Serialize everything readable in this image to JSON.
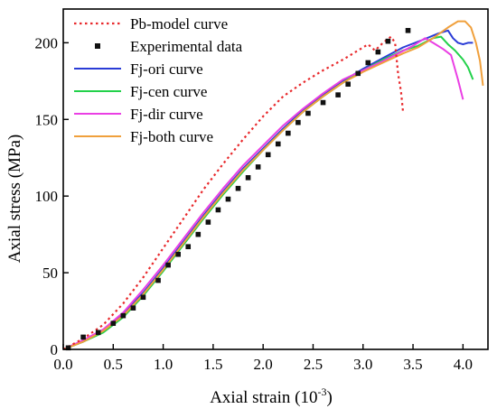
{
  "chart_data": {
    "type": "line",
    "xlabel": "Axial strain (10",
    "xlabel_sup": "-3",
    "xlabel_end": ")",
    "ylabel": "Axial stress (MPa)",
    "xlim": [
      0.0,
      4.25
    ],
    "ylim": [
      0,
      222
    ],
    "xticks": [
      "0.0",
      "0.5",
      "1.0",
      "1.5",
      "2.0",
      "2.5",
      "3.0",
      "3.5",
      "4.0"
    ],
    "yticks": [
      "0",
      "50",
      "100",
      "150",
      "200"
    ],
    "legend_position": "top-left",
    "series": [
      {
        "name": "Pb-model curve",
        "style": "dotted",
        "color": "#e8292c",
        "points": [
          [
            0.0,
            0
          ],
          [
            0.2,
            7
          ],
          [
            0.4,
            16
          ],
          [
            0.6,
            30
          ],
          [
            0.8,
            47
          ],
          [
            1.0,
            66
          ],
          [
            1.2,
            85
          ],
          [
            1.4,
            104
          ],
          [
            1.6,
            121
          ],
          [
            1.8,
            137
          ],
          [
            2.0,
            152
          ],
          [
            2.2,
            165
          ],
          [
            2.4,
            174
          ],
          [
            2.6,
            182
          ],
          [
            2.8,
            189
          ],
          [
            2.95,
            195
          ],
          [
            3.05,
            199
          ],
          [
            3.12,
            195
          ],
          [
            3.2,
            200
          ],
          [
            3.28,
            204
          ],
          [
            3.32,
            200
          ],
          [
            3.35,
            180
          ],
          [
            3.38,
            168
          ],
          [
            3.4,
            155
          ]
        ]
      },
      {
        "name": "Experimental data",
        "style": "marker",
        "color": "#111111",
        "points": [
          [
            0.05,
            1
          ],
          [
            0.2,
            8
          ],
          [
            0.35,
            11
          ],
          [
            0.5,
            17
          ],
          [
            0.6,
            22
          ],
          [
            0.7,
            27
          ],
          [
            0.8,
            34
          ],
          [
            0.95,
            45
          ],
          [
            1.05,
            55
          ],
          [
            1.15,
            62
          ],
          [
            1.25,
            67
          ],
          [
            1.35,
            75
          ],
          [
            1.45,
            83
          ],
          [
            1.55,
            91
          ],
          [
            1.65,
            98
          ],
          [
            1.75,
            105
          ],
          [
            1.85,
            112
          ],
          [
            1.95,
            119
          ],
          [
            2.05,
            127
          ],
          [
            2.15,
            134
          ],
          [
            2.25,
            141
          ],
          [
            2.35,
            148
          ],
          [
            2.45,
            154
          ],
          [
            2.6,
            161
          ],
          [
            2.75,
            166
          ],
          [
            2.85,
            173
          ],
          [
            2.95,
            180
          ],
          [
            3.05,
            187
          ],
          [
            3.15,
            194
          ],
          [
            3.25,
            201
          ],
          [
            3.45,
            208
          ]
        ]
      },
      {
        "name": "Fj-ori curve",
        "style": "solid",
        "color": "#2a3cd6",
        "points": [
          [
            0.0,
            0
          ],
          [
            0.2,
            5
          ],
          [
            0.4,
            12
          ],
          [
            0.6,
            23
          ],
          [
            0.8,
            37
          ],
          [
            1.0,
            53
          ],
          [
            1.2,
            70
          ],
          [
            1.4,
            87
          ],
          [
            1.6,
            103
          ],
          [
            1.8,
            118
          ],
          [
            2.0,
            131
          ],
          [
            2.2,
            144
          ],
          [
            2.4,
            156
          ],
          [
            2.6,
            166
          ],
          [
            2.8,
            175
          ],
          [
            3.0,
            183
          ],
          [
            3.2,
            190
          ],
          [
            3.4,
            197
          ],
          [
            3.6,
            202
          ],
          [
            3.75,
            206
          ],
          [
            3.85,
            208
          ],
          [
            3.9,
            203
          ],
          [
            3.95,
            200
          ],
          [
            4.0,
            199
          ],
          [
            4.05,
            200
          ],
          [
            4.1,
            200
          ]
        ]
      },
      {
        "name": "Fj-cen curve",
        "style": "solid",
        "color": "#22d14a",
        "points": [
          [
            0.0,
            0
          ],
          [
            0.2,
            5
          ],
          [
            0.4,
            11
          ],
          [
            0.6,
            21
          ],
          [
            0.8,
            35
          ],
          [
            1.0,
            51
          ],
          [
            1.2,
            68
          ],
          [
            1.4,
            85
          ],
          [
            1.6,
            101
          ],
          [
            1.8,
            116
          ],
          [
            2.0,
            130
          ],
          [
            2.2,
            143
          ],
          [
            2.4,
            155
          ],
          [
            2.6,
            165
          ],
          [
            2.8,
            174
          ],
          [
            3.0,
            182
          ],
          [
            3.2,
            189
          ],
          [
            3.4,
            195
          ],
          [
            3.55,
            198
          ],
          [
            3.7,
            203
          ],
          [
            3.78,
            204
          ],
          [
            3.85,
            199
          ],
          [
            3.92,
            195
          ],
          [
            4.0,
            189
          ],
          [
            4.05,
            184
          ],
          [
            4.1,
            176
          ]
        ]
      },
      {
        "name": "Fj-dir curve",
        "style": "solid",
        "color": "#ea3fe4",
        "points": [
          [
            0.0,
            0
          ],
          [
            0.2,
            6
          ],
          [
            0.4,
            13
          ],
          [
            0.6,
            24
          ],
          [
            0.8,
            39
          ],
          [
            1.0,
            55
          ],
          [
            1.2,
            72
          ],
          [
            1.4,
            89
          ],
          [
            1.6,
            105
          ],
          [
            1.8,
            120
          ],
          [
            2.0,
            133
          ],
          [
            2.2,
            146
          ],
          [
            2.4,
            157
          ],
          [
            2.6,
            167
          ],
          [
            2.8,
            176
          ],
          [
            3.0,
            182
          ],
          [
            3.2,
            188
          ],
          [
            3.35,
            193
          ],
          [
            3.5,
            198
          ],
          [
            3.62,
            203
          ],
          [
            3.7,
            200
          ],
          [
            3.8,
            196
          ],
          [
            3.88,
            192
          ],
          [
            3.95,
            176
          ],
          [
            4.0,
            163
          ]
        ]
      },
      {
        "name": "Fj-both curve",
        "style": "solid",
        "color": "#f0a03c",
        "points": [
          [
            0.0,
            0
          ],
          [
            0.2,
            5
          ],
          [
            0.4,
            12
          ],
          [
            0.6,
            22
          ],
          [
            0.8,
            36
          ],
          [
            1.0,
            52
          ],
          [
            1.2,
            69
          ],
          [
            1.4,
            86
          ],
          [
            1.6,
            102
          ],
          [
            1.8,
            117
          ],
          [
            2.0,
            130
          ],
          [
            2.2,
            143
          ],
          [
            2.4,
            155
          ],
          [
            2.6,
            165
          ],
          [
            2.8,
            174
          ],
          [
            3.0,
            181
          ],
          [
            3.2,
            187
          ],
          [
            3.4,
            193
          ],
          [
            3.55,
            197
          ],
          [
            3.7,
            203
          ],
          [
            3.85,
            210
          ],
          [
            3.95,
            214
          ],
          [
            4.02,
            214
          ],
          [
            4.08,
            210
          ],
          [
            4.13,
            200
          ],
          [
            4.17,
            188
          ],
          [
            4.2,
            172
          ]
        ]
      }
    ]
  }
}
